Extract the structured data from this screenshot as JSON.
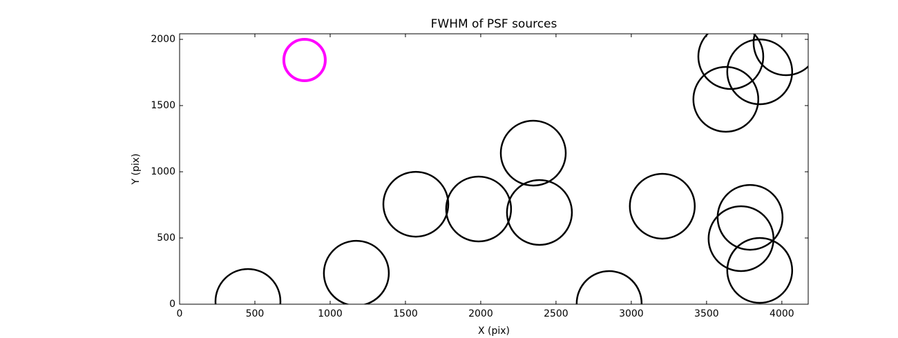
{
  "chart_data": {
    "type": "scatter",
    "title": "FWHM of PSF sources",
    "x_label": "X (pix)",
    "y_label": "Y (pix)",
    "xlim": [
      0,
      4175
    ],
    "ylim": [
      0,
      2042
    ],
    "xticks": [
      0,
      500,
      1000,
      1500,
      2000,
      2500,
      3000,
      3500,
      4000
    ],
    "yticks": [
      0,
      500,
      1000,
      1500,
      2000
    ],
    "grid": false,
    "series": [
      {
        "color": "#000000",
        "marker": "open-circle",
        "x": [
          454,
          1174,
          1569,
          1986,
          2349,
          2390,
          2853,
          3206,
          3661,
          3853,
          4028,
          3628,
          3789,
          3729,
          3853
        ],
        "values": [
          21,
          234,
          755,
          719,
          1141,
          693,
          5,
          740,
          1870,
          1755,
          1974,
          1547,
          656,
          495,
          255
        ]
      },
      {
        "color": "#ff00ff",
        "marker": "open-circle",
        "x": [
          830
        ],
        "values": [
          1844
        ]
      }
    ]
  }
}
